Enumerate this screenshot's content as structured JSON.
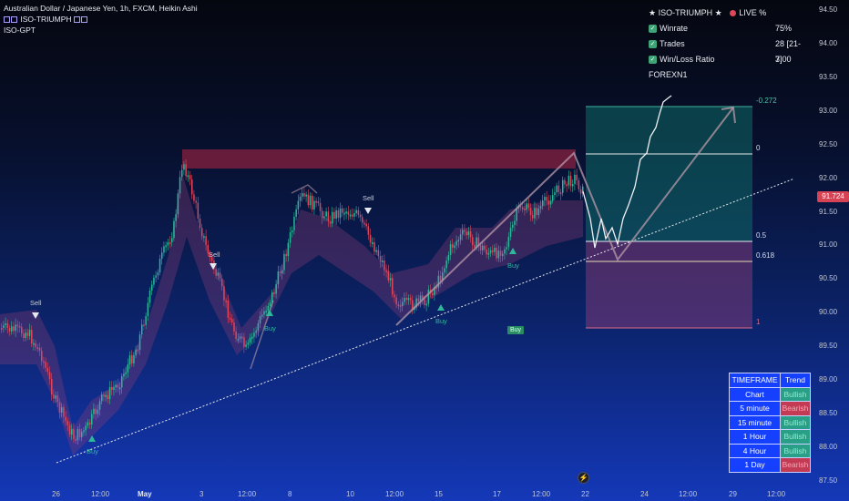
{
  "header": {
    "title": "Australian Dollar / Japanese Yen, 1h, FXCM, Heikin Ashi",
    "indicator_1": "ISO-TRIUMPH",
    "indicator_2": "ISO-GPT"
  },
  "stats": {
    "title": "ISO-TRIUMPH",
    "live": "LIVE %",
    "rows": [
      {
        "label": "Winrate",
        "value": "75%"
      },
      {
        "label": "Trades",
        "value": "28 [21-7]"
      },
      {
        "label": "Win/Loss Ratio",
        "value": "3.00"
      }
    ],
    "footer": "FOREXN1"
  },
  "y_axis": [
    "94.50",
    "94.00",
    "93.50",
    "93.00",
    "92.50",
    "92.00",
    "91.50",
    "91.00",
    "90.50",
    "90.00",
    "89.50",
    "89.00",
    "88.50",
    "88.00",
    "87.50"
  ],
  "price_tag": "91.724",
  "x_axis": [
    {
      "label": "26",
      "bold": false
    },
    {
      "label": "12:00",
      "bold": false
    },
    {
      "label": "May",
      "bold": true
    },
    {
      "label": "3",
      "bold": false
    },
    {
      "label": "12:00",
      "bold": false
    },
    {
      "label": "8",
      "bold": false
    },
    {
      "label": "10",
      "bold": false
    },
    {
      "label": "12:00",
      "bold": false
    },
    {
      "label": "15",
      "bold": false
    },
    {
      "label": "17",
      "bold": false
    },
    {
      "label": "12:00",
      "bold": false
    },
    {
      "label": "22",
      "bold": false
    },
    {
      "label": "24",
      "bold": false
    },
    {
      "label": "12:00",
      "bold": false
    },
    {
      "label": "29",
      "bold": false
    },
    {
      "label": "12:00",
      "bold": false
    }
  ],
  "fib_levels": [
    {
      "label": "-0.272",
      "color": "#4fc3a8"
    },
    {
      "label": "0",
      "color": "#d8dce6"
    },
    {
      "label": "0.5",
      "color": "#d8dce6"
    },
    {
      "label": "0.618",
      "color": "#d8dce6"
    },
    {
      "label": "1",
      "color": "#e06a86"
    }
  ],
  "signals": {
    "sell": "Sell",
    "buy": "Buy",
    "badge": "Buy"
  },
  "timeframe_table": {
    "header": [
      "TIMEFRAME",
      "Trend"
    ],
    "rows": [
      {
        "tf": "Chart",
        "trend": "Bullish"
      },
      {
        "tf": "5 minute",
        "trend": "Bearish"
      },
      {
        "tf": "15 minute",
        "trend": "Bullish"
      },
      {
        "tf": "1 Hour",
        "trend": "Bullish"
      },
      {
        "tf": "4 Hour",
        "trend": "Bullish"
      },
      {
        "tf": "1 Day",
        "trend": "Bearish"
      }
    ]
  },
  "colors": {
    "bull": "#2ab89a",
    "bear": "#e0455c",
    "accent": "#1640ff"
  }
}
